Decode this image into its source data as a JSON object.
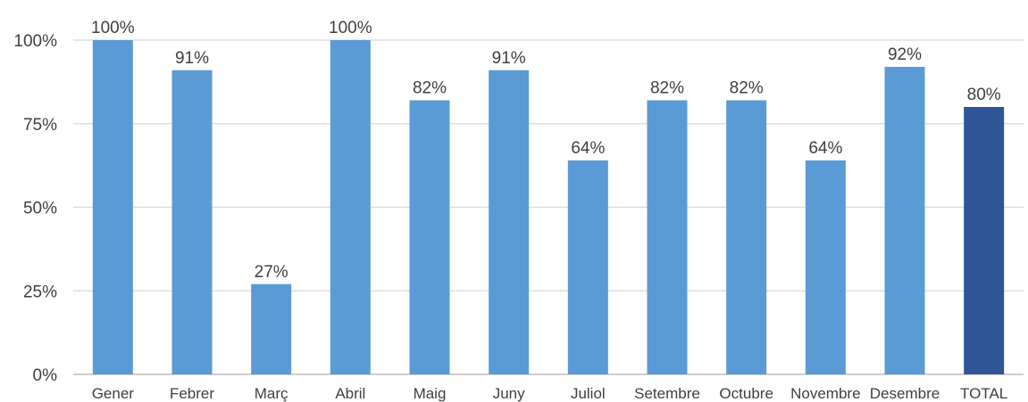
{
  "chart_data": {
    "type": "bar",
    "categories": [
      "Gener",
      "Febrer",
      "Març",
      "Abril",
      "Maig",
      "Juny",
      "Juliol",
      "Setembre",
      "Octubre",
      "Novembre",
      "Desembre",
      "TOTAL"
    ],
    "values": [
      100,
      91,
      27,
      100,
      82,
      91,
      64,
      82,
      82,
      64,
      92,
      80
    ],
    "data_labels": [
      "100%",
      "91%",
      "27%",
      "100%",
      "82%",
      "91%",
      "64%",
      "82%",
      "82%",
      "64%",
      "92%",
      "80%"
    ],
    "ylim": [
      0,
      100
    ],
    "yticks": [
      0,
      25,
      50,
      75,
      100
    ],
    "ytick_labels": [
      "0%",
      "25%",
      "50%",
      "75%",
      "100%"
    ],
    "grid": true,
    "legend": "none",
    "colors": {
      "bar": "#5b9bd5",
      "highlight_bar": "#2f5597",
      "highlight_category": "TOTAL"
    }
  }
}
